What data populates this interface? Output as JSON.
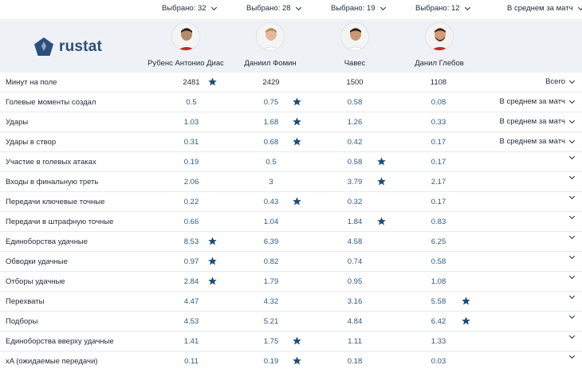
{
  "selectors": [
    {
      "label": "Выбрано: 32"
    },
    {
      "label": "Выбрано: 28"
    },
    {
      "label": "Выбрано: 19"
    },
    {
      "label": "Выбрано: 12"
    },
    {
      "label": "В среднем за матч"
    }
  ],
  "logo": {
    "text": "rustat"
  },
  "players": [
    {
      "name": "Рубенс Антонио Диас"
    },
    {
      "name": "Даниил Фомин"
    },
    {
      "name": "Чавес"
    },
    {
      "name": "Данил Глебов"
    }
  ],
  "colors": {
    "star": "#1f4e79",
    "value": "#2b5b86",
    "header_bg": "#eef1f5",
    "logo": "#2b4f7c"
  },
  "rows": [
    {
      "metric": "Минут на поле",
      "values": [
        "2481",
        "2429",
        "1500",
        "1108"
      ],
      "best": 0,
      "mode": "Всего"
    },
    {
      "metric": "Голевые моменты создал",
      "values": [
        "0.5",
        "0.75",
        "0.58",
        "0.08"
      ],
      "best": 1,
      "mode": "В среднем за матч"
    },
    {
      "metric": "Удары",
      "values": [
        "1.03",
        "1.68",
        "1.26",
        "0.33"
      ],
      "best": 1,
      "mode": "В среднем за матч"
    },
    {
      "metric": "Удары в створ",
      "values": [
        "0.31",
        "0.68",
        "0.42",
        "0.17"
      ],
      "best": 1,
      "mode": "В среднем за матч"
    },
    {
      "metric": "Участие в голевых атаках",
      "values": [
        "0.19",
        "0.5",
        "0.58",
        "0.17"
      ],
      "best": 2,
      "mode": ""
    },
    {
      "metric": "Входы в финальную треть",
      "values": [
        "2.06",
        "3",
        "3.79",
        "2.17"
      ],
      "best": 2,
      "mode": ""
    },
    {
      "metric": "Передачи ключевые точные",
      "values": [
        "0.22",
        "0.43",
        "0.32",
        "0.17"
      ],
      "best": 1,
      "mode": ""
    },
    {
      "metric": "Передачи в штрафную точные",
      "values": [
        "0.66",
        "1.04",
        "1.84",
        "0.83"
      ],
      "best": 2,
      "mode": ""
    },
    {
      "metric": "Единоборства удачные",
      "values": [
        "8.53",
        "6.39",
        "4.58",
        "6.25"
      ],
      "best": 0,
      "mode": ""
    },
    {
      "metric": "Обводки удачные",
      "values": [
        "0.97",
        "0.82",
        "0.74",
        "0.58"
      ],
      "best": 0,
      "mode": ""
    },
    {
      "metric": "Отборы удачные",
      "values": [
        "2.84",
        "1.79",
        "0.95",
        "1.08"
      ],
      "best": 0,
      "mode": ""
    },
    {
      "metric": "Перехваты",
      "values": [
        "4.47",
        "4.32",
        "3.16",
        "5.58"
      ],
      "best": 3,
      "mode": ""
    },
    {
      "metric": "Подборы",
      "values": [
        "4.53",
        "5.21",
        "4.84",
        "6.42"
      ],
      "best": 3,
      "mode": ""
    },
    {
      "metric": "Единоборства вверху удачные",
      "values": [
        "1.41",
        "1.75",
        "1.11",
        "1.33"
      ],
      "best": 1,
      "mode": ""
    },
    {
      "metric": "xA (ожидаемые передачи)",
      "values": [
        "0.11",
        "0.19",
        "0.18",
        "0.03"
      ],
      "best": 1,
      "mode": ""
    }
  ]
}
